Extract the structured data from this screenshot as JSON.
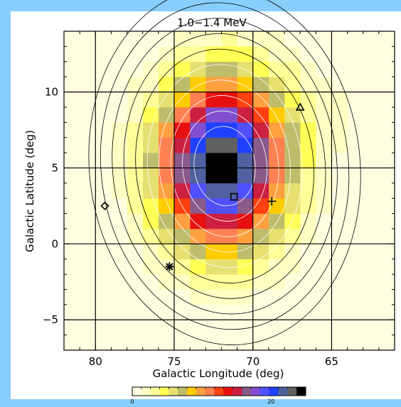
{
  "chart_data": {
    "type": "heatmap",
    "title": "1.0−1.4 MeV",
    "xlabel": "Galactic Longitude (deg)",
    "ylabel": "Galactic Latitude (deg)",
    "xlim": [
      82,
      61
    ],
    "ylim": [
      -7,
      14
    ],
    "x_ticks": [
      80,
      75,
      70,
      65
    ],
    "y_ticks": [
      10,
      5,
      0,
      -5
    ],
    "x_tick_labels": [
      "80",
      "75",
      "70",
      "65"
    ],
    "y_tick_labels": [
      "10",
      "5",
      "0",
      "−5"
    ],
    "grid": true,
    "cell_size_deg": 1,
    "peak": {
      "l": 72.0,
      "b": 5.2
    },
    "colorbar": {
      "min": 0,
      "max": 25,
      "tick_values": [
        0,
        20
      ],
      "tick_labels": [
        "0",
        "20"
      ],
      "colors": [
        "#ffffe0",
        "#ffffc4",
        "#ffff99",
        "#ffff55",
        "#e6e070",
        "#bdbd6b",
        "#ffcc00",
        "#ffa040",
        "#ff8050",
        "#ff4010",
        "#e61010",
        "#cc2040",
        "#8a5a8a",
        "#8050d0",
        "#5050ff",
        "#2040ff",
        "#5060a0",
        "#606060",
        "#000000"
      ]
    },
    "markers": [
      {
        "symbol": "diamond",
        "l": 79.4,
        "b": 2.5
      },
      {
        "symbol": "asterisk",
        "l": 75.3,
        "b": -1.5
      },
      {
        "symbol": "square",
        "l": 71.2,
        "b": 3.1
      },
      {
        "symbol": "plus",
        "l": 68.8,
        "b": 2.8
      },
      {
        "symbol": "triangle",
        "l": 67.0,
        "b": 9.0
      }
    ],
    "contour_levels": [
      2,
      4,
      6,
      8,
      10,
      12,
      14,
      16,
      18,
      20
    ]
  }
}
